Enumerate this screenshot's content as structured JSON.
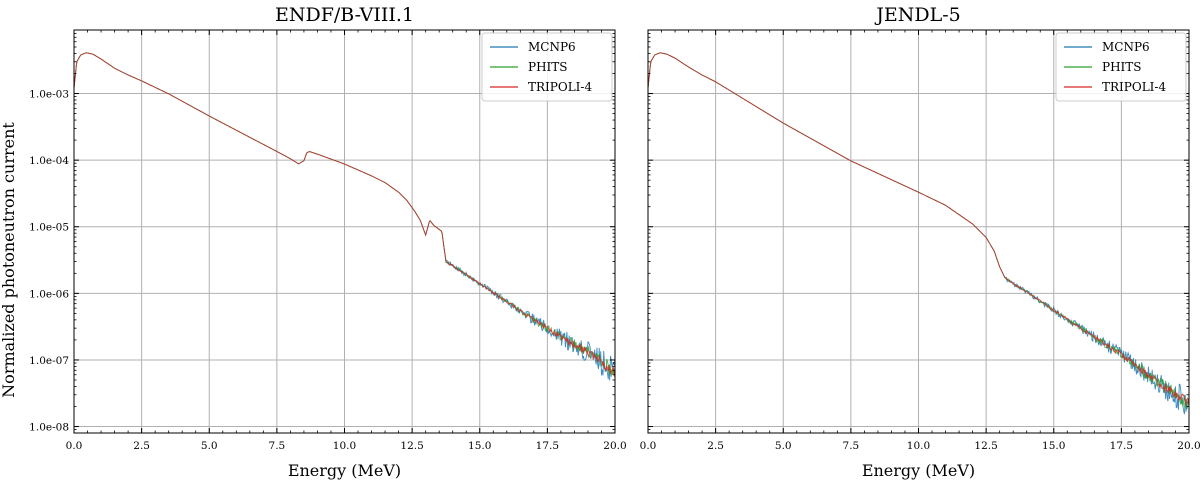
{
  "figure": {
    "y_axis_label": "Normalized photoneutron current"
  },
  "chart_data": [
    {
      "type": "line",
      "title": "ENDF/B-VIII.1",
      "xlabel": "Energy (MeV)",
      "ylabel": "Normalized photoneutron current",
      "xlim": [
        0,
        20
      ],
      "ylim": [
        8e-09,
        0.009
      ],
      "yscale": "log",
      "grid": true,
      "legend_location": "top-right",
      "x_ticks": [
        0,
        2.5,
        5,
        7.5,
        10,
        12.5,
        15,
        17.5,
        20
      ],
      "x_tick_labels": [
        "0.0",
        "2.5",
        "5.0",
        "7.5",
        "10.0",
        "12.5",
        "15.0",
        "17.5",
        "20.0"
      ],
      "y_ticks": [
        1e-08,
        1e-07,
        1e-06,
        1e-05,
        0.0001,
        0.001
      ],
      "y_tick_labels": [
        "1.0e-08",
        "1.0e-07",
        "1.0e-06",
        "1.0e-05",
        "1.0e-04",
        "1.0e-03"
      ],
      "shape_points": [
        [
          0.0,
          0.0012
        ],
        [
          0.1,
          0.003
        ],
        [
          0.25,
          0.0038
        ],
        [
          0.45,
          0.0041
        ],
        [
          0.7,
          0.0039
        ],
        [
          1.0,
          0.0033
        ],
        [
          1.5,
          0.0024
        ],
        [
          2.0,
          0.0019
        ],
        [
          2.5,
          0.00155
        ],
        [
          3.5,
          0.00099
        ],
        [
          5.0,
          0.00046
        ],
        [
          6.5,
          0.00022
        ],
        [
          7.5,
          0.000135
        ],
        [
          8.0,
          0.000105
        ],
        [
          8.3,
          8.8e-05
        ],
        [
          8.5,
          9.8e-05
        ],
        [
          8.6,
          0.000128
        ],
        [
          8.7,
          0.000135
        ],
        [
          9.0,
          0.000123
        ],
        [
          10.0,
          8.75e-05
        ],
        [
          11.0,
          5.8e-05
        ],
        [
          11.5,
          4.6e-05
        ],
        [
          12.0,
          3.3e-05
        ],
        [
          12.3,
          2.5e-05
        ],
        [
          12.6,
          1.7e-05
        ],
        [
          12.8,
          1.25e-05
        ],
        [
          13.0,
          7.5e-06
        ],
        [
          13.15,
          1.25e-05
        ],
        [
          13.3,
          1.05e-05
        ],
        [
          13.6,
          8.5e-06
        ],
        [
          13.7,
          4.2e-06
        ],
        [
          13.75,
          3e-06
        ],
        [
          14.0,
          2.6e-06
        ],
        [
          15.0,
          1.4e-06
        ],
        [
          16.0,
          7.5e-07
        ],
        [
          17.0,
          4e-07
        ],
        [
          18.0,
          2.2e-07
        ],
        [
          19.0,
          1.3e-07
        ],
        [
          20.0,
          6.5e-08
        ]
      ],
      "series": [
        {
          "name": "MCNP6",
          "color": "#1f77b4",
          "noise_start": 13.7
        },
        {
          "name": "PHITS",
          "color": "#2ca02c",
          "noise_start": 13.7
        },
        {
          "name": "TRIPOLI-4",
          "color": "#d62728",
          "noise_start": 13.7
        }
      ]
    },
    {
      "type": "line",
      "title": "JENDL-5",
      "xlabel": "Energy (MeV)",
      "ylabel": "",
      "xlim": [
        0,
        20
      ],
      "ylim": [
        8e-09,
        0.009
      ],
      "yscale": "log",
      "grid": true,
      "legend_location": "top-right",
      "x_ticks": [
        0,
        2.5,
        5,
        7.5,
        10,
        12.5,
        15,
        17.5,
        20
      ],
      "x_tick_labels": [
        "0.0",
        "2.5",
        "5.0",
        "7.5",
        "10.0",
        "12.5",
        "15.0",
        "17.5",
        "20.0"
      ],
      "y_ticks": [
        1e-08,
        1e-07,
        1e-06,
        1e-05,
        0.0001,
        0.001
      ],
      "y_tick_labels": [],
      "shape_points": [
        [
          0.0,
          0.0012
        ],
        [
          0.1,
          0.003
        ],
        [
          0.25,
          0.0038
        ],
        [
          0.45,
          0.0041
        ],
        [
          0.7,
          0.0039
        ],
        [
          1.0,
          0.0034
        ],
        [
          1.5,
          0.0025
        ],
        [
          2.0,
          0.0019
        ],
        [
          2.5,
          0.0015
        ],
        [
          5.0,
          0.00036
        ],
        [
          7.5,
          9.75e-05
        ],
        [
          10.0,
          3.3e-05
        ],
        [
          11.0,
          2.1e-05
        ],
        [
          12.0,
          1.1e-05
        ],
        [
          12.5,
          6.9e-06
        ],
        [
          12.8,
          4.3e-06
        ],
        [
          13.0,
          2.5e-06
        ],
        [
          13.2,
          1.7e-06
        ],
        [
          13.5,
          1.4e-06
        ],
        [
          14.0,
          1.05e-06
        ],
        [
          15.0,
          5.6e-07
        ],
        [
          16.0,
          3e-07
        ],
        [
          17.5,
          1.2e-07
        ],
        [
          19.0,
          4.2e-08
        ],
        [
          20.0,
          2.2e-08
        ]
      ],
      "series": [
        {
          "name": "MCNP6",
          "color": "#1f77b4",
          "noise_start": 13.2
        },
        {
          "name": "PHITS",
          "color": "#2ca02c",
          "noise_start": 13.2
        },
        {
          "name": "TRIPOLI-4",
          "color": "#d62728",
          "noise_start": 13.2
        }
      ]
    }
  ]
}
